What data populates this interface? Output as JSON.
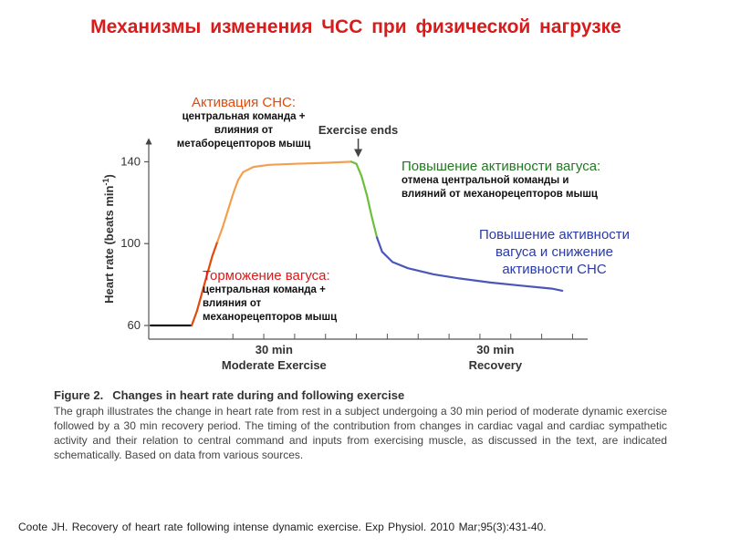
{
  "slide": {
    "title": "Механизмы  изменения  ЧСС  при физической нагрузке"
  },
  "annotations": {
    "snc_activation": {
      "heading": "Активация СНС:",
      "lines": [
        "центральная команда +",
        "влияния от",
        "метаборецепторов мышц"
      ]
    },
    "vagus_increase": {
      "heading": "Повышение активности вагуса:",
      "lines": [
        "отмена центральной команды и",
        "влияний от механорецепторов мышц"
      ]
    },
    "vagus_inhibition": {
      "heading": "Торможение вагуса:",
      "lines": [
        "центральная команда +",
        "влияния от",
        "механорецепторов мышц"
      ]
    },
    "vagus_snc": {
      "lines": [
        "Повышение активности",
        "вагуса и снижение",
        "активности СНС"
      ]
    }
  },
  "chart_data": {
    "type": "line",
    "ylabel": "Heart rate (beats min",
    "ylabel_sup": "-1",
    "ylabel_close": ")",
    "yticks": [
      60,
      100,
      140
    ],
    "ylim": [
      56,
      150
    ],
    "xlim": [
      -10,
      76
    ],
    "phase_labels": [
      {
        "time": "30 min",
        "name": "Moderate Exercise"
      },
      {
        "time": "30 min",
        "name": "Recovery"
      }
    ],
    "event_label": "Exercise ends",
    "event_time": 30,
    "series": [
      {
        "name": "rest",
        "color": "#1a1a1a",
        "points": [
          [
            -10,
            60
          ],
          [
            -2,
            60
          ]
        ]
      },
      {
        "name": "vagal withdrawal",
        "color": "#e04a0a",
        "points": [
          [
            -2,
            60
          ],
          [
            -1,
            67
          ],
          [
            0,
            76
          ],
          [
            1,
            85
          ],
          [
            2,
            94
          ],
          [
            3,
            101
          ]
        ]
      },
      {
        "name": "sympathetic activation",
        "color": "#f2a050",
        "points": [
          [
            3,
            101
          ],
          [
            4,
            108
          ],
          [
            5,
            116
          ],
          [
            6,
            124
          ],
          [
            7,
            131
          ],
          [
            8,
            135
          ],
          [
            10,
            137.5
          ],
          [
            13,
            138.5
          ],
          [
            18,
            139
          ],
          [
            24,
            139.5
          ],
          [
            29,
            140
          ]
        ]
      },
      {
        "name": "vagal reactivation",
        "color": "#6cbf3c",
        "points": [
          [
            29,
            140
          ],
          [
            30,
            139
          ],
          [
            31,
            133
          ],
          [
            32,
            124
          ],
          [
            33,
            113
          ],
          [
            34,
            103
          ]
        ]
      },
      {
        "name": "vagal increase and sympathetic decrease",
        "color": "#4a56b8",
        "points": [
          [
            34,
            103
          ],
          [
            35,
            96
          ],
          [
            37,
            91
          ],
          [
            40,
            88
          ],
          [
            45,
            85
          ],
          [
            50,
            83
          ],
          [
            56,
            81
          ],
          [
            62,
            79.5
          ],
          [
            68,
            78
          ],
          [
            70,
            77
          ]
        ]
      }
    ]
  },
  "figure": {
    "label": "Figure 2.",
    "title": "Changes in heart rate during and following exercise",
    "text": "The graph illustrates the change in heart rate from rest in a subject undergoing a 30 min period of moderate dynamic exercise followed by a 30 min recovery period. The timing of the contribution from changes in cardiac vagal and cardiac sympathetic activity and their relation to central command and inputs from exercising muscle, as discussed in the text, are indicated schematically. Based on data from various sources."
  },
  "citation": "Coote JH. Recovery  of heart rate following  intense dynamic exercise. Exp Physiol. 2010 Mar;95(3):431-40."
}
